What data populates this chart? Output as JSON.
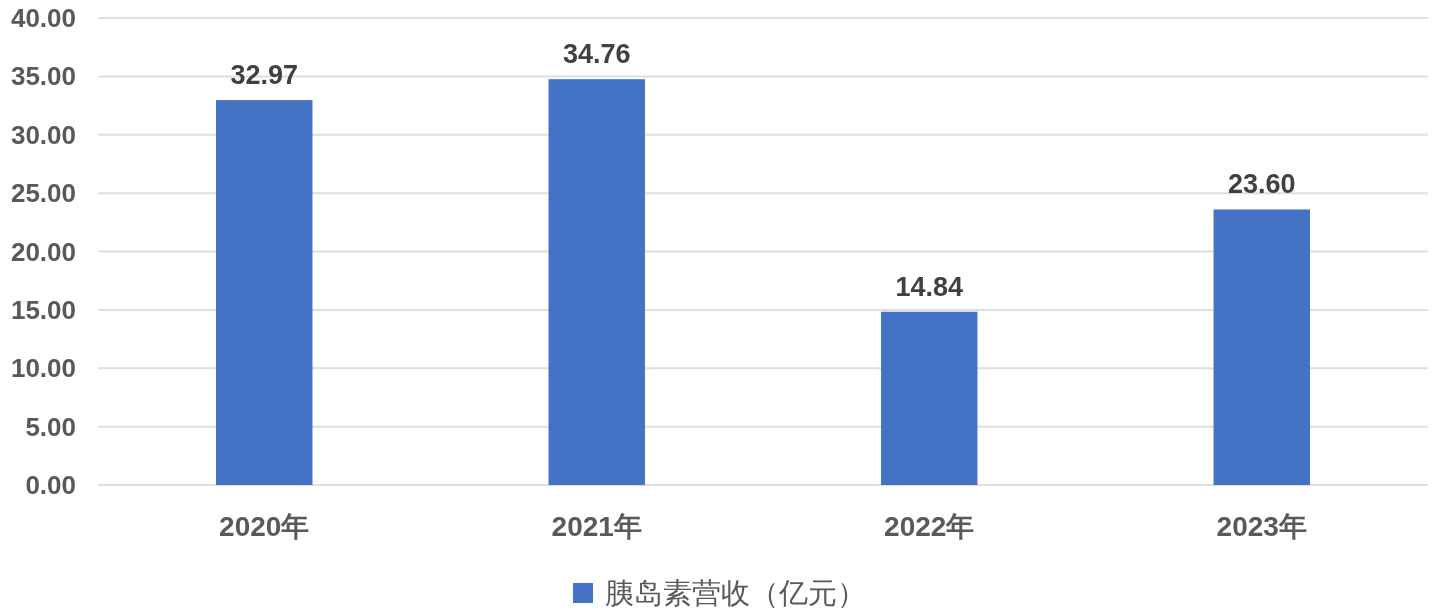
{
  "chart_data": {
    "type": "bar",
    "categories": [
      "2020年",
      "2021年",
      "2022年",
      "2023年"
    ],
    "series": [
      {
        "name": "胰岛素营收（亿元）",
        "color": "#4472c4",
        "values": [
          32.97,
          34.76,
          14.84,
          23.6
        ],
        "value_labels": [
          "32.97",
          "34.76",
          "14.84",
          "23.60"
        ]
      }
    ],
    "ylim": [
      0,
      40
    ],
    "yticks": [
      {
        "value": 0,
        "label": "0.00"
      },
      {
        "value": 5,
        "label": "5.00"
      },
      {
        "value": 10,
        "label": "10.00"
      },
      {
        "value": 15,
        "label": "15.00"
      },
      {
        "value": 20,
        "label": "20.00"
      },
      {
        "value": 25,
        "label": "25.00"
      },
      {
        "value": 30,
        "label": "30.00"
      },
      {
        "value": 35,
        "label": "35.00"
      },
      {
        "value": 40,
        "label": "40.00"
      }
    ],
    "grid": "y",
    "legend": "bottom"
  }
}
